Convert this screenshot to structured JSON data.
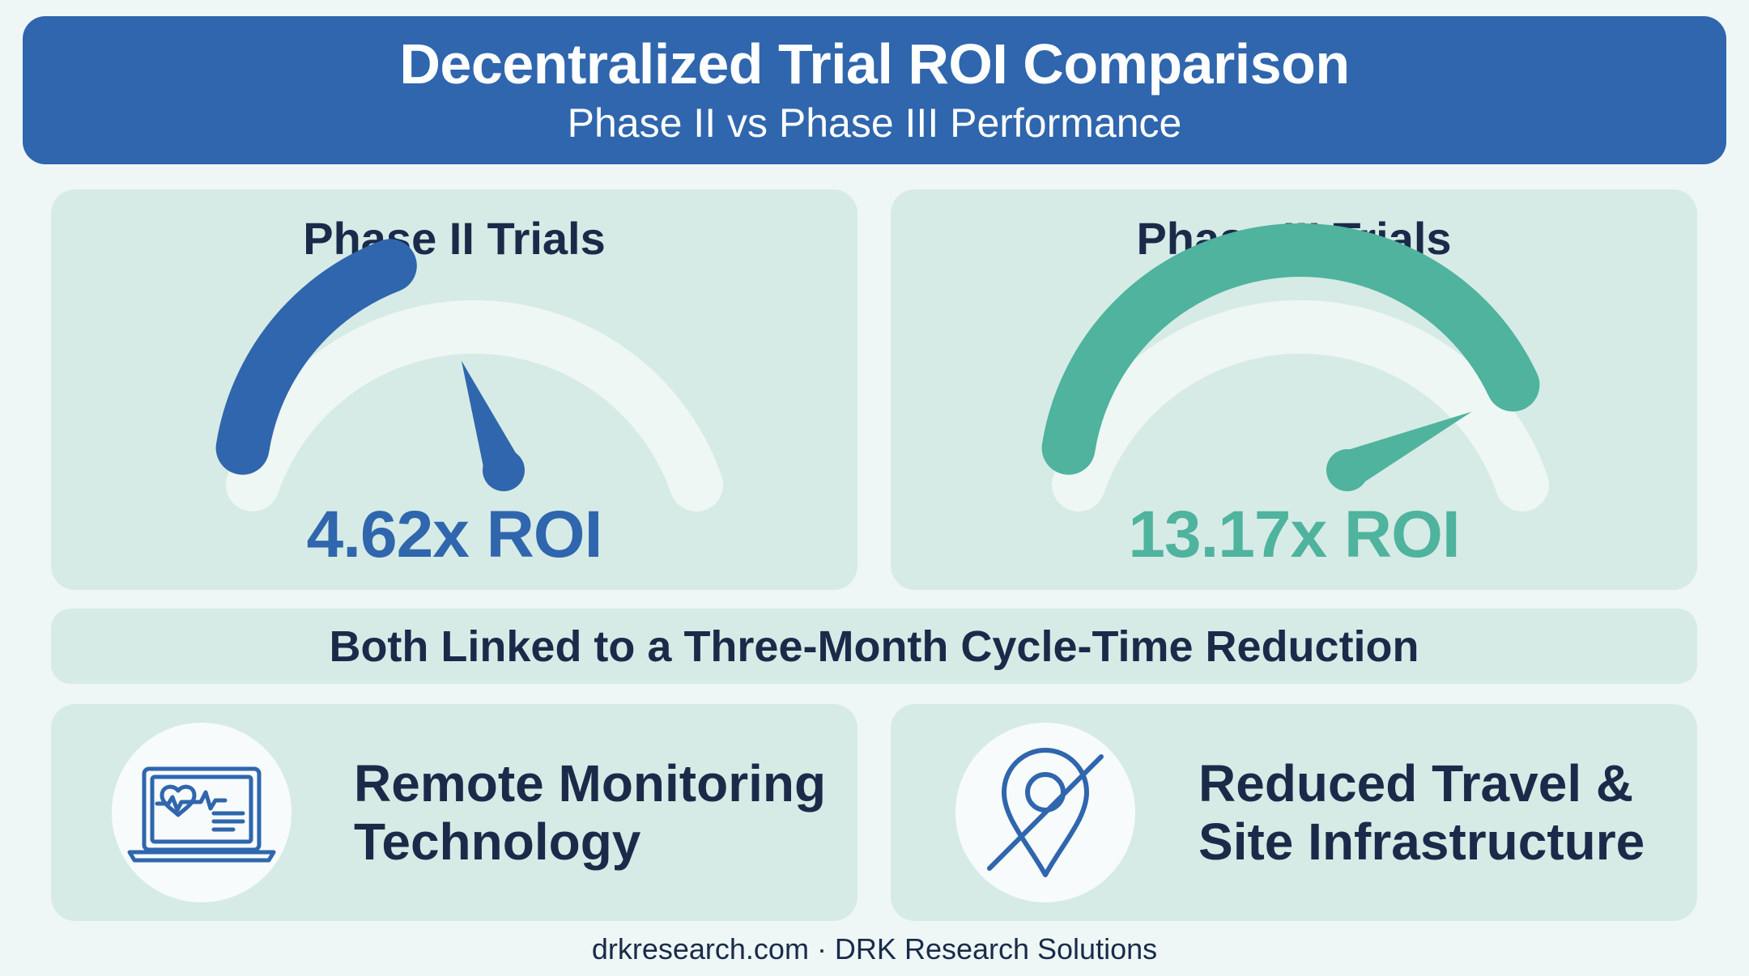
{
  "header": {
    "title": "Decentralized Trial ROI Comparison",
    "subtitle": "Phase II vs Phase III Performance"
  },
  "gauges": [
    {
      "title": "Phase II Trials",
      "value_label": "4.62x ROI",
      "level_fraction": 0.37,
      "color": "#2f66ad"
    },
    {
      "title": "Phase III Trials",
      "value_label": "13.17x ROI",
      "level_fraction": 0.9,
      "color": "#4fb39e"
    }
  ],
  "banner": {
    "text": "Both Linked to a Three-Month Cycle-Time Reduction"
  },
  "features": [
    {
      "line1": "Remote Monitoring",
      "line2": "Technology",
      "icon": "laptop-heart-monitor-icon"
    },
    {
      "line1": "Reduced Travel &",
      "line2": "Site Infrastructure",
      "icon": "location-pin-crossed-icon"
    }
  ],
  "footer": {
    "text": "drkresearch.com · DRK Research Solutions"
  },
  "colors": {
    "primary_blue": "#2f66ad",
    "teal": "#4fb39e",
    "panel": "#d6ebe6",
    "background": "#eef7f6",
    "text_dark": "#1a2b4a"
  }
}
